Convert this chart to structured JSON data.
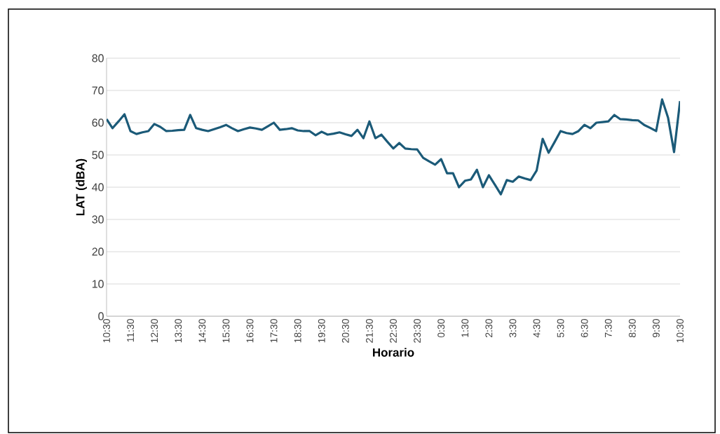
{
  "chart_data": {
    "type": "line",
    "xlabel": "Horario",
    "ylabel": "LAT (dBA)",
    "categories": [
      "10:30",
      null,
      null,
      null,
      "11:30",
      null,
      null,
      null,
      "12:30",
      null,
      null,
      null,
      "13:30",
      null,
      null,
      null,
      "14:30",
      null,
      null,
      null,
      "15:30",
      null,
      null,
      null,
      "16:30",
      null,
      null,
      null,
      "17:30",
      null,
      null,
      null,
      "18:30",
      null,
      null,
      null,
      "19:30",
      null,
      null,
      null,
      "20:30",
      null,
      null,
      null,
      "21:30",
      null,
      null,
      null,
      "22:30",
      null,
      null,
      null,
      "23:30",
      null,
      null,
      null,
      "0:30",
      null,
      null,
      null,
      "1:30",
      null,
      null,
      null,
      "2:30",
      null,
      null,
      null,
      "3:30",
      null,
      null,
      null,
      "4:30",
      null,
      null,
      null,
      "5:30",
      null,
      null,
      null,
      "6:30",
      null,
      null,
      null,
      "7:30",
      null,
      null,
      null,
      "8:30",
      null,
      null,
      null,
      "9:30",
      null,
      null,
      null,
      "10:30"
    ],
    "series": [
      {
        "color": "#1b5a78",
        "values": [
          61.1,
          58.3,
          60.4,
          62.6,
          57.4,
          56.5,
          57.0,
          57.4,
          59.6,
          58.7,
          57.4,
          57.5,
          57.7,
          57.8,
          62.4,
          58.3,
          57.8,
          57.4,
          58.0,
          58.6,
          59.3,
          58.3,
          57.4,
          58.0,
          58.5,
          58.2,
          57.8,
          58.9,
          60.0,
          57.8,
          58.0,
          58.3,
          57.6,
          57.4,
          57.4,
          56.1,
          57.2,
          56.3,
          56.6,
          57.0,
          56.4,
          55.9,
          57.8,
          55.2,
          60.4,
          55.2,
          56.3,
          54.1,
          52.0,
          53.7,
          52.0,
          51.8,
          51.7,
          49.1,
          48.0,
          47.0,
          48.7,
          44.3,
          44.3,
          40.0,
          42.0,
          42.4,
          45.4,
          40.0,
          43.7,
          40.8,
          37.8,
          42.2,
          41.7,
          43.3,
          42.7,
          42.2,
          45.2,
          55.0,
          50.7,
          54.0,
          57.4,
          56.8,
          56.5,
          57.4,
          59.3,
          58.3,
          60.0,
          60.2,
          60.4,
          62.4,
          61.1,
          61.0,
          60.8,
          60.7,
          59.3,
          58.4,
          57.4,
          67.2,
          61.5,
          50.9,
          66.7
        ]
      }
    ],
    "ylim": [
      0,
      80
    ],
    "yticks": [
      0,
      10,
      20,
      30,
      40,
      50,
      60,
      70,
      80
    ],
    "grid": "y",
    "legend": false,
    "marker": "none",
    "line_style": "solid"
  }
}
